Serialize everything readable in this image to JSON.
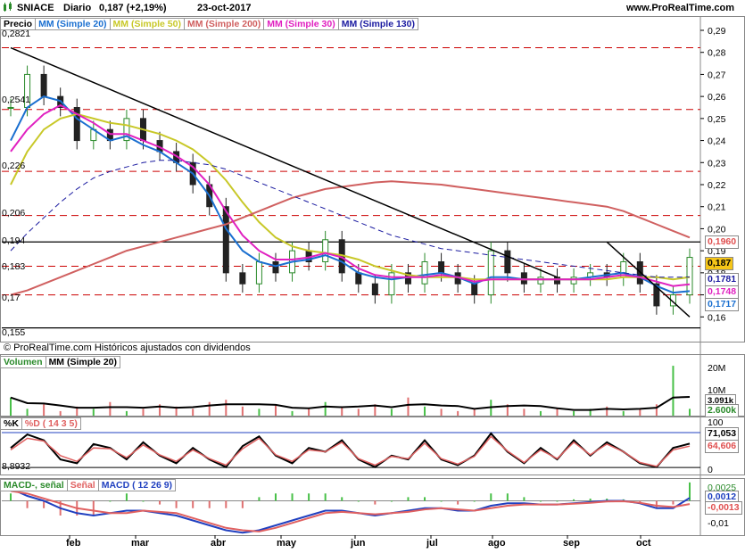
{
  "header": {
    "symbol": "SNIACE",
    "period": "Diario",
    "price_change": "0,187 (+2,19%)",
    "date": "23-oct-2017",
    "site": "www.ProRealTime.com"
  },
  "price_panel": {
    "legend": [
      "Precio",
      "MM (Simple 20)",
      "MM (Simple 50)",
      "MM (Simple 200)",
      "MM (Simple 30)",
      "MM (Simple 130)"
    ],
    "level_labels": [
      "0,2821",
      "0,2541",
      "0,226",
      "0,206",
      "0,194",
      "0,183",
      "0,17",
      "0,155"
    ],
    "note": "© ProRealTime.com  Históricos ajustados con dividendos",
    "right_tags": [
      {
        "label": "0,1960",
        "color": "#e05050",
        "bg": "#ffffff"
      },
      {
        "label": "0,187",
        "color": "#000000",
        "bg": "#f5c518"
      },
      {
        "label": "0,1781",
        "color": "#1a1aa0",
        "bg": "#ffffff"
      },
      {
        "label": "0,1748",
        "color": "#e020c0",
        "bg": "#ffffff"
      },
      {
        "label": "0,1717",
        "color": "#1a6fd0",
        "bg": "#ffffff"
      }
    ]
  },
  "volume_panel": {
    "legend": [
      "Volumen",
      "MM (Simple 20)"
    ],
    "axis_labels": [
      "20M",
      "10M"
    ],
    "tags": [
      {
        "label": "3.091k"
      },
      {
        "label": "2.600k"
      }
    ]
  },
  "stoch_panel": {
    "legend": [
      "%K",
      "%D ( 14 3 5)"
    ],
    "level_label": "8,8932",
    "axis_labels": [
      "100",
      "0"
    ],
    "tags": [
      {
        "label": "71,053"
      },
      {
        "label": "64,606"
      }
    ]
  },
  "macd_panel": {
    "legend": [
      "MACD-, señal",
      "Señal",
      "MACD ( 12 26 9)"
    ],
    "axis_labels": [
      "0,0025",
      "0",
      "-0,01"
    ],
    "tags": [
      {
        "label": "0,0012"
      },
      {
        "label": "-0,0013"
      }
    ]
  },
  "months": [
    "feb",
    "mar",
    "abr",
    "may",
    "jun",
    "jul",
    "ago",
    "sep",
    "oct"
  ],
  "colors": {
    "up": "#2a8a2a",
    "down": "#222222",
    "sma20": "#1a6fd0",
    "sma50": "#c8c828",
    "sma200": "#d06060",
    "sma30": "#e020c0",
    "sma130": "#1a1aa0",
    "grid_red": "#cc0000",
    "volume_up": "#48c048",
    "volume_down": "#e07070",
    "stoch_k": "#000000",
    "stoch_d": "#e06060",
    "macd": "#2040c0",
    "signal": "#e06060"
  },
  "chart_data": [
    {
      "type": "candlestick",
      "title": "SNIACE Diario",
      "x": [
        "2017-01-09",
        "2017-01-16",
        "2017-01-23",
        "2017-01-30",
        "2017-02-06",
        "2017-02-13",
        "2017-02-20",
        "2017-02-27",
        "2017-03-06",
        "2017-03-13",
        "2017-03-20",
        "2017-03-27",
        "2017-04-03",
        "2017-04-10",
        "2017-04-17",
        "2017-04-24",
        "2017-05-01",
        "2017-05-08",
        "2017-05-15",
        "2017-05-22",
        "2017-05-29",
        "2017-06-05",
        "2017-06-12",
        "2017-06-19",
        "2017-06-26",
        "2017-07-03",
        "2017-07-10",
        "2017-07-17",
        "2017-07-24",
        "2017-07-31",
        "2017-08-07",
        "2017-08-14",
        "2017-08-21",
        "2017-08-28",
        "2017-09-04",
        "2017-09-11",
        "2017-09-18",
        "2017-09-25",
        "2017-10-02",
        "2017-10-09",
        "2017-10-16",
        "2017-10-23"
      ],
      "close": [
        0.255,
        0.27,
        0.26,
        0.255,
        0.24,
        0.245,
        0.24,
        0.25,
        0.24,
        0.235,
        0.23,
        0.22,
        0.21,
        0.18,
        0.175,
        0.185,
        0.18,
        0.19,
        0.185,
        0.195,
        0.18,
        0.175,
        0.17,
        0.18,
        0.175,
        0.185,
        0.18,
        0.175,
        0.17,
        0.19,
        0.18,
        0.175,
        0.178,
        0.175,
        0.178,
        0.18,
        0.178,
        0.185,
        0.175,
        0.165,
        0.17,
        0.187
      ],
      "ylim": [
        0.15,
        0.29
      ],
      "series": [
        {
          "name": "MM (Simple 20)",
          "values": [
            0.24,
            0.255,
            0.26,
            0.258,
            0.25,
            0.245,
            0.24,
            0.242,
            0.238,
            0.235,
            0.23,
            0.225,
            0.215,
            0.2,
            0.19,
            0.185,
            0.183,
            0.185,
            0.186,
            0.188,
            0.185,
            0.18,
            0.178,
            0.177,
            0.178,
            0.179,
            0.18,
            0.178,
            0.175,
            0.178,
            0.178,
            0.177,
            0.177,
            0.177,
            0.177,
            0.178,
            0.179,
            0.18,
            0.178,
            0.174,
            0.171,
            0.1717
          ]
        },
        {
          "name": "MM (Simple 50)",
          "values": [
            0.22,
            0.235,
            0.245,
            0.25,
            0.252,
            0.25,
            0.248,
            0.247,
            0.245,
            0.243,
            0.24,
            0.236,
            0.23,
            0.222,
            0.212,
            0.203,
            0.196,
            0.192,
            0.19,
            0.189,
            0.188,
            0.186,
            0.183,
            0.181,
            0.179,
            0.178,
            0.178,
            0.178,
            0.177,
            0.177,
            0.177,
            0.177,
            0.177,
            0.177,
            0.177,
            0.177,
            0.177,
            0.178,
            0.178,
            0.178,
            0.177,
            0.1781
          ]
        },
        {
          "name": "MM (Simple 200)",
          "values": [
            0.17,
            0.172,
            0.175,
            0.178,
            0.181,
            0.184,
            0.187,
            0.19,
            0.192,
            0.194,
            0.196,
            0.198,
            0.2,
            0.202,
            0.205,
            0.208,
            0.211,
            0.214,
            0.216,
            0.218,
            0.219,
            0.22,
            0.221,
            0.2215,
            0.221,
            0.2205,
            0.22,
            0.219,
            0.218,
            0.217,
            0.216,
            0.215,
            0.214,
            0.213,
            0.212,
            0.211,
            0.21,
            0.208,
            0.205,
            0.202,
            0.199,
            0.196
          ]
        },
        {
          "name": "MM (Simple 30)",
          "values": [
            0.235,
            0.245,
            0.252,
            0.256,
            0.252,
            0.248,
            0.243,
            0.243,
            0.24,
            0.237,
            0.233,
            0.228,
            0.22,
            0.208,
            0.197,
            0.19,
            0.186,
            0.186,
            0.187,
            0.189,
            0.187,
            0.182,
            0.179,
            0.178,
            0.178,
            0.178,
            0.179,
            0.178,
            0.176,
            0.177,
            0.177,
            0.177,
            0.177,
            0.177,
            0.177,
            0.177,
            0.178,
            0.179,
            0.178,
            0.176,
            0.174,
            0.1748
          ]
        },
        {
          "name": "MM (Simple 130)",
          "values": [
            0.19,
            0.198,
            0.205,
            0.212,
            0.218,
            0.223,
            0.226,
            0.228,
            0.23,
            0.231,
            0.231,
            0.23,
            0.229,
            0.227,
            0.224,
            0.221,
            0.218,
            0.215,
            0.212,
            0.209,
            0.206,
            0.203,
            0.2,
            0.197,
            0.195,
            0.193,
            0.191,
            0.19,
            0.189,
            0.188,
            0.187,
            0.186,
            0.185,
            0.184,
            0.183,
            0.182,
            0.181,
            0.18,
            0.179,
            0.178,
            0.178,
            0.1781
          ]
        }
      ]
    },
    {
      "type": "bar",
      "title": "Volumen",
      "values_millions": [
        8,
        3,
        5,
        2,
        4,
        3,
        6,
        2,
        3,
        5,
        4,
        3,
        6,
        7,
        4,
        3,
        5,
        2,
        3,
        6,
        4,
        3,
        5,
        3,
        8,
        4,
        3,
        2,
        3,
        7,
        5,
        3,
        2,
        3,
        2,
        3,
        4,
        2,
        3,
        5,
        22,
        3
      ]
    },
    {
      "type": "line",
      "title": "%K %D ( 14 3 5)",
      "ylim": [
        0,
        100
      ],
      "series": [
        {
          "name": "%K",
          "values": [
            60,
            95,
            80,
            30,
            20,
            70,
            60,
            30,
            75,
            40,
            20,
            60,
            30,
            10,
            65,
            90,
            40,
            20,
            60,
            50,
            80,
            30,
            10,
            40,
            30,
            80,
            30,
            15,
            40,
            98,
            50,
            20,
            60,
            30,
            80,
            40,
            75,
            50,
            20,
            10,
            60,
            71.053
          ]
        },
        {
          "name": "%D ( 14 3 5)",
          "values": [
            55,
            85,
            78,
            40,
            25,
            60,
            58,
            35,
            68,
            42,
            25,
            55,
            32,
            15,
            58,
            85,
            42,
            25,
            55,
            50,
            75,
            32,
            15,
            38,
            32,
            72,
            32,
            18,
            38,
            90,
            52,
            22,
            55,
            32,
            75,
            42,
            70,
            50,
            22,
            12,
            55,
            64.606
          ]
        }
      ]
    },
    {
      "type": "line",
      "title": "MACD ( 12 26 9)",
      "series": [
        {
          "name": "MACD",
          "values": [
            0.005,
            0.002,
            0.0,
            -0.003,
            -0.005,
            -0.006,
            -0.005,
            -0.004,
            -0.004,
            -0.005,
            -0.006,
            -0.008,
            -0.01,
            -0.012,
            -0.013,
            -0.012,
            -0.01,
            -0.008,
            -0.006,
            -0.004,
            -0.004,
            -0.005,
            -0.006,
            -0.005,
            -0.004,
            -0.003,
            -0.003,
            -0.004,
            -0.004,
            -0.002,
            -0.001,
            -0.001,
            -0.0015,
            -0.0015,
            -0.001,
            -0.0005,
            0.0,
            0.0,
            -0.001,
            -0.003,
            -0.003,
            0.0012
          ]
        },
        {
          "name": "Señal",
          "values": [
            0.004,
            0.003,
            0.001,
            -0.001,
            -0.003,
            -0.004,
            -0.005,
            -0.005,
            -0.004,
            -0.0045,
            -0.005,
            -0.007,
            -0.009,
            -0.011,
            -0.012,
            -0.0125,
            -0.011,
            -0.009,
            -0.007,
            -0.005,
            -0.0045,
            -0.005,
            -0.0055,
            -0.005,
            -0.0045,
            -0.0035,
            -0.003,
            -0.0035,
            -0.004,
            -0.003,
            -0.002,
            -0.0015,
            -0.0015,
            -0.0015,
            -0.0012,
            -0.0008,
            -0.0003,
            -0.0002,
            -0.0008,
            -0.002,
            -0.0025,
            -0.0013
          ]
        }
      ]
    }
  ]
}
